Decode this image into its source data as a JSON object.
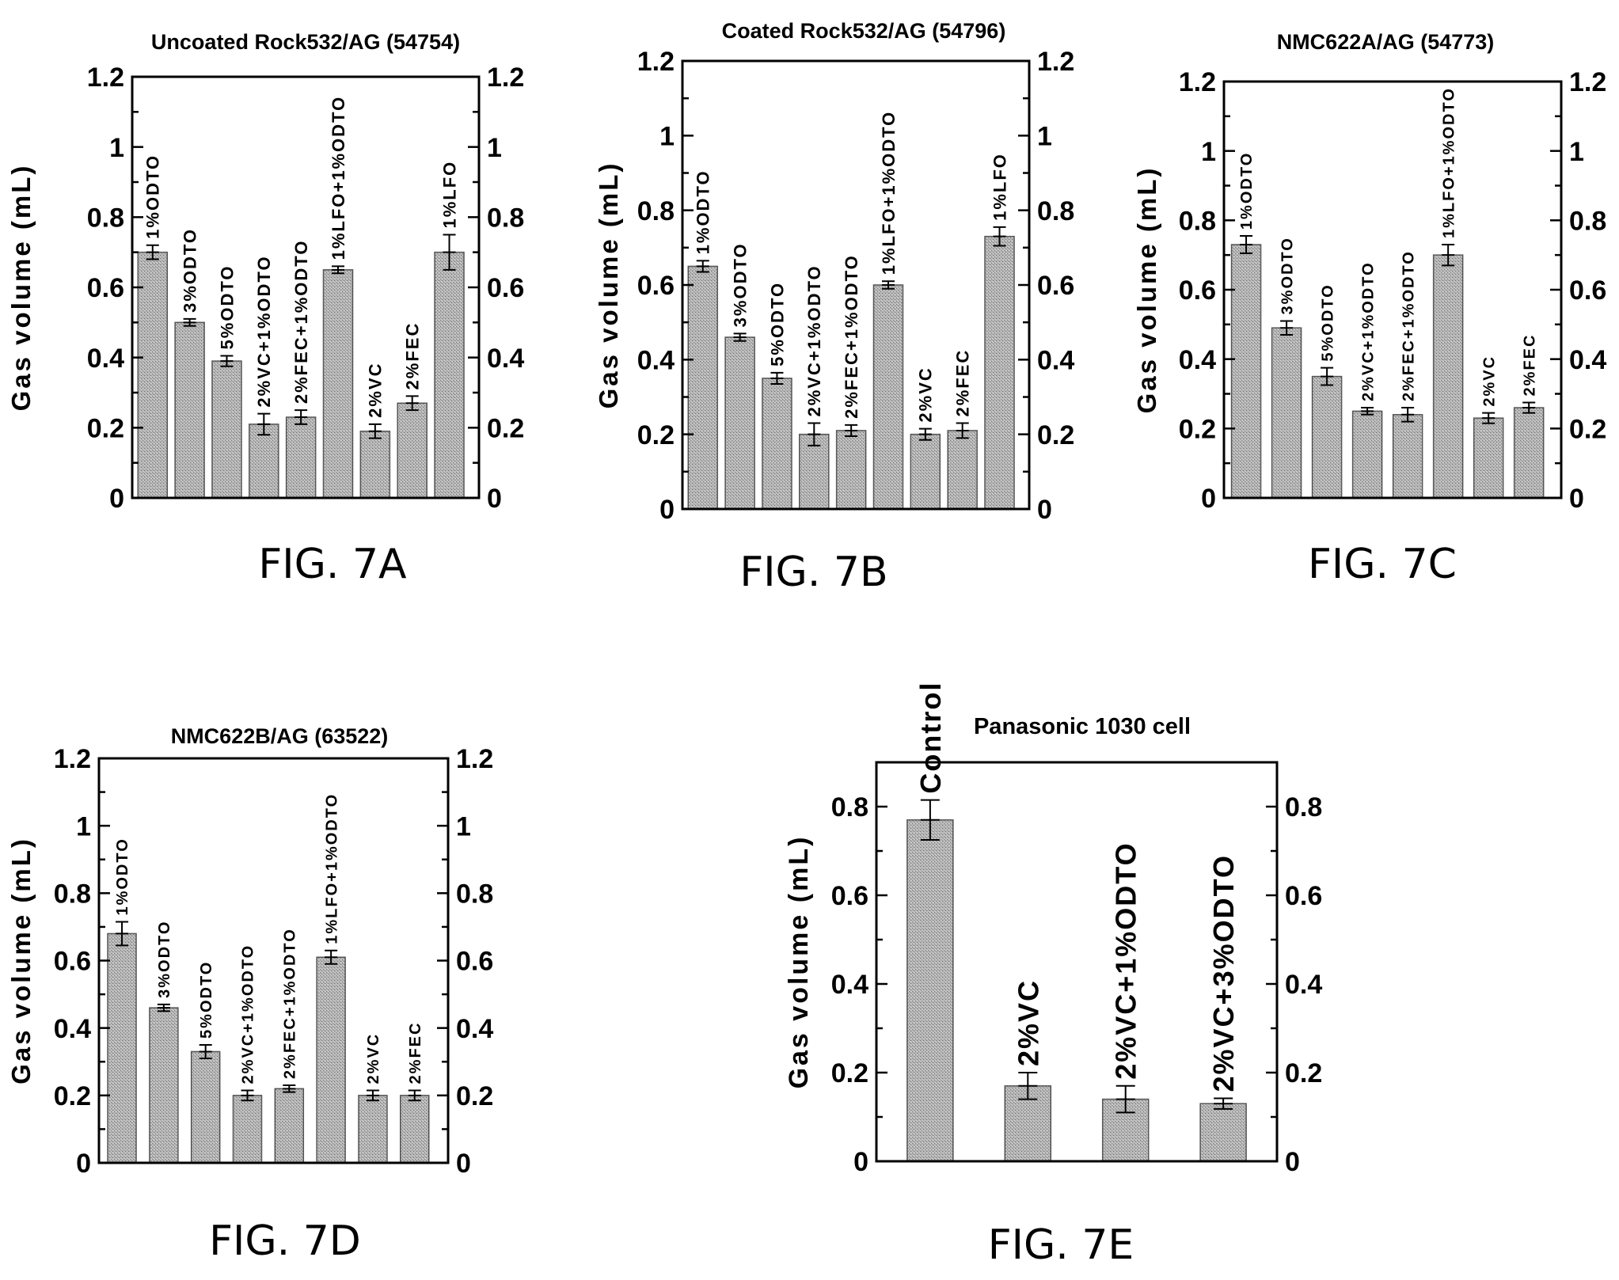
{
  "chart_data": [
    {
      "type": "bar",
      "figure_label": "FIG. 7A",
      "title": "Uncoated Rock532/AG (54754)",
      "ylabel": "Gas volume (mL)",
      "ylim": [
        0,
        1.2
      ],
      "yticks": [
        "0",
        "0.2",
        "0.4",
        "0.6",
        "0.8",
        "1",
        "1.2"
      ],
      "right_axis": true,
      "categories": [
        "1%ODTO",
        "3%ODTO",
        "5%ODTO",
        "2%VC+1%ODTO",
        "2%FEC+1%ODTO",
        "1%LFO+1%ODTO",
        "2%VC",
        "2%FEC",
        "1%LFO"
      ],
      "values": [
        0.7,
        0.5,
        0.39,
        0.21,
        0.23,
        0.65,
        0.19,
        0.27,
        0.7
      ],
      "errors": [
        0.02,
        0.01,
        0.015,
        0.03,
        0.02,
        0.01,
        0.02,
        0.02,
        0.05
      ]
    },
    {
      "type": "bar",
      "figure_label": "FIG. 7B",
      "title": "Coated Rock532/AG (54796)",
      "ylabel": "Gas volume (mL)",
      "ylim": [
        0,
        1.2
      ],
      "yticks": [
        "0",
        "0.2",
        "0.4",
        "0.6",
        "0.8",
        "1",
        "1.2"
      ],
      "right_axis": true,
      "categories": [
        "1%ODTO",
        "3%ODTO",
        "5%ODTO",
        "2%VC+1%ODTO",
        "2%FEC+1%ODTO",
        "1%LFO+1%ODTO",
        "2%VC",
        "2%FEC",
        "1%LFO"
      ],
      "values": [
        0.65,
        0.46,
        0.35,
        0.2,
        0.21,
        0.6,
        0.2,
        0.21,
        0.73
      ],
      "errors": [
        0.015,
        0.01,
        0.015,
        0.03,
        0.015,
        0.01,
        0.015,
        0.02,
        0.025
      ]
    },
    {
      "type": "bar",
      "figure_label": "FIG. 7C",
      "title": "NMC622A/AG (54773)",
      "ylabel": "Gas volume (mL)",
      "ylim": [
        0,
        1.2
      ],
      "yticks": [
        "0",
        "0.2",
        "0.4",
        "0.6",
        "0.8",
        "1",
        "1.2"
      ],
      "right_axis": true,
      "categories": [
        "1%ODTO",
        "3%ODTO",
        "5%ODTO",
        "2%VC+1%ODTO",
        "2%FEC+1%ODTO",
        "1%LFO+1%ODTO",
        "2%VC",
        "2%FEC"
      ],
      "values": [
        0.73,
        0.49,
        0.35,
        0.25,
        0.24,
        0.7,
        0.23,
        0.26
      ],
      "errors": [
        0.025,
        0.02,
        0.025,
        0.01,
        0.02,
        0.03,
        0.015,
        0.015
      ]
    },
    {
      "type": "bar",
      "figure_label": "FIG. 7D",
      "title": "NMC622B/AG (63522)",
      "ylabel": "Gas volume (mL)",
      "ylim": [
        0,
        1.2
      ],
      "yticks": [
        "0",
        "0.2",
        "0.4",
        "0.6",
        "0.8",
        "1",
        "1.2"
      ],
      "right_axis": true,
      "categories": [
        "1%ODTO",
        "3%ODTO",
        "5%ODTO",
        "2%VC+1%ODTO",
        "2%FEC+1%ODTO",
        "1%LFO+1%ODTO",
        "2%VC",
        "2%FEC"
      ],
      "values": [
        0.68,
        0.46,
        0.33,
        0.2,
        0.22,
        0.61,
        0.2,
        0.2
      ],
      "errors": [
        0.035,
        0.01,
        0.02,
        0.015,
        0.01,
        0.02,
        0.015,
        0.015
      ]
    },
    {
      "type": "bar",
      "figure_label": "FIG. 7E",
      "title": "Panasonic 1030 cell",
      "ylabel": "Gas volume (mL)",
      "ylim": [
        0,
        0.9
      ],
      "yticks": [
        "0",
        "0.2",
        "0.4",
        "0.6",
        "0.8"
      ],
      "right_axis": true,
      "categories": [
        "Control",
        "2%VC",
        "2%VC+1%ODTO",
        "2%VC+3%ODTO"
      ],
      "values": [
        0.77,
        0.17,
        0.14,
        0.13
      ],
      "errors": [
        0.045,
        0.03,
        0.03,
        0.012
      ]
    }
  ]
}
